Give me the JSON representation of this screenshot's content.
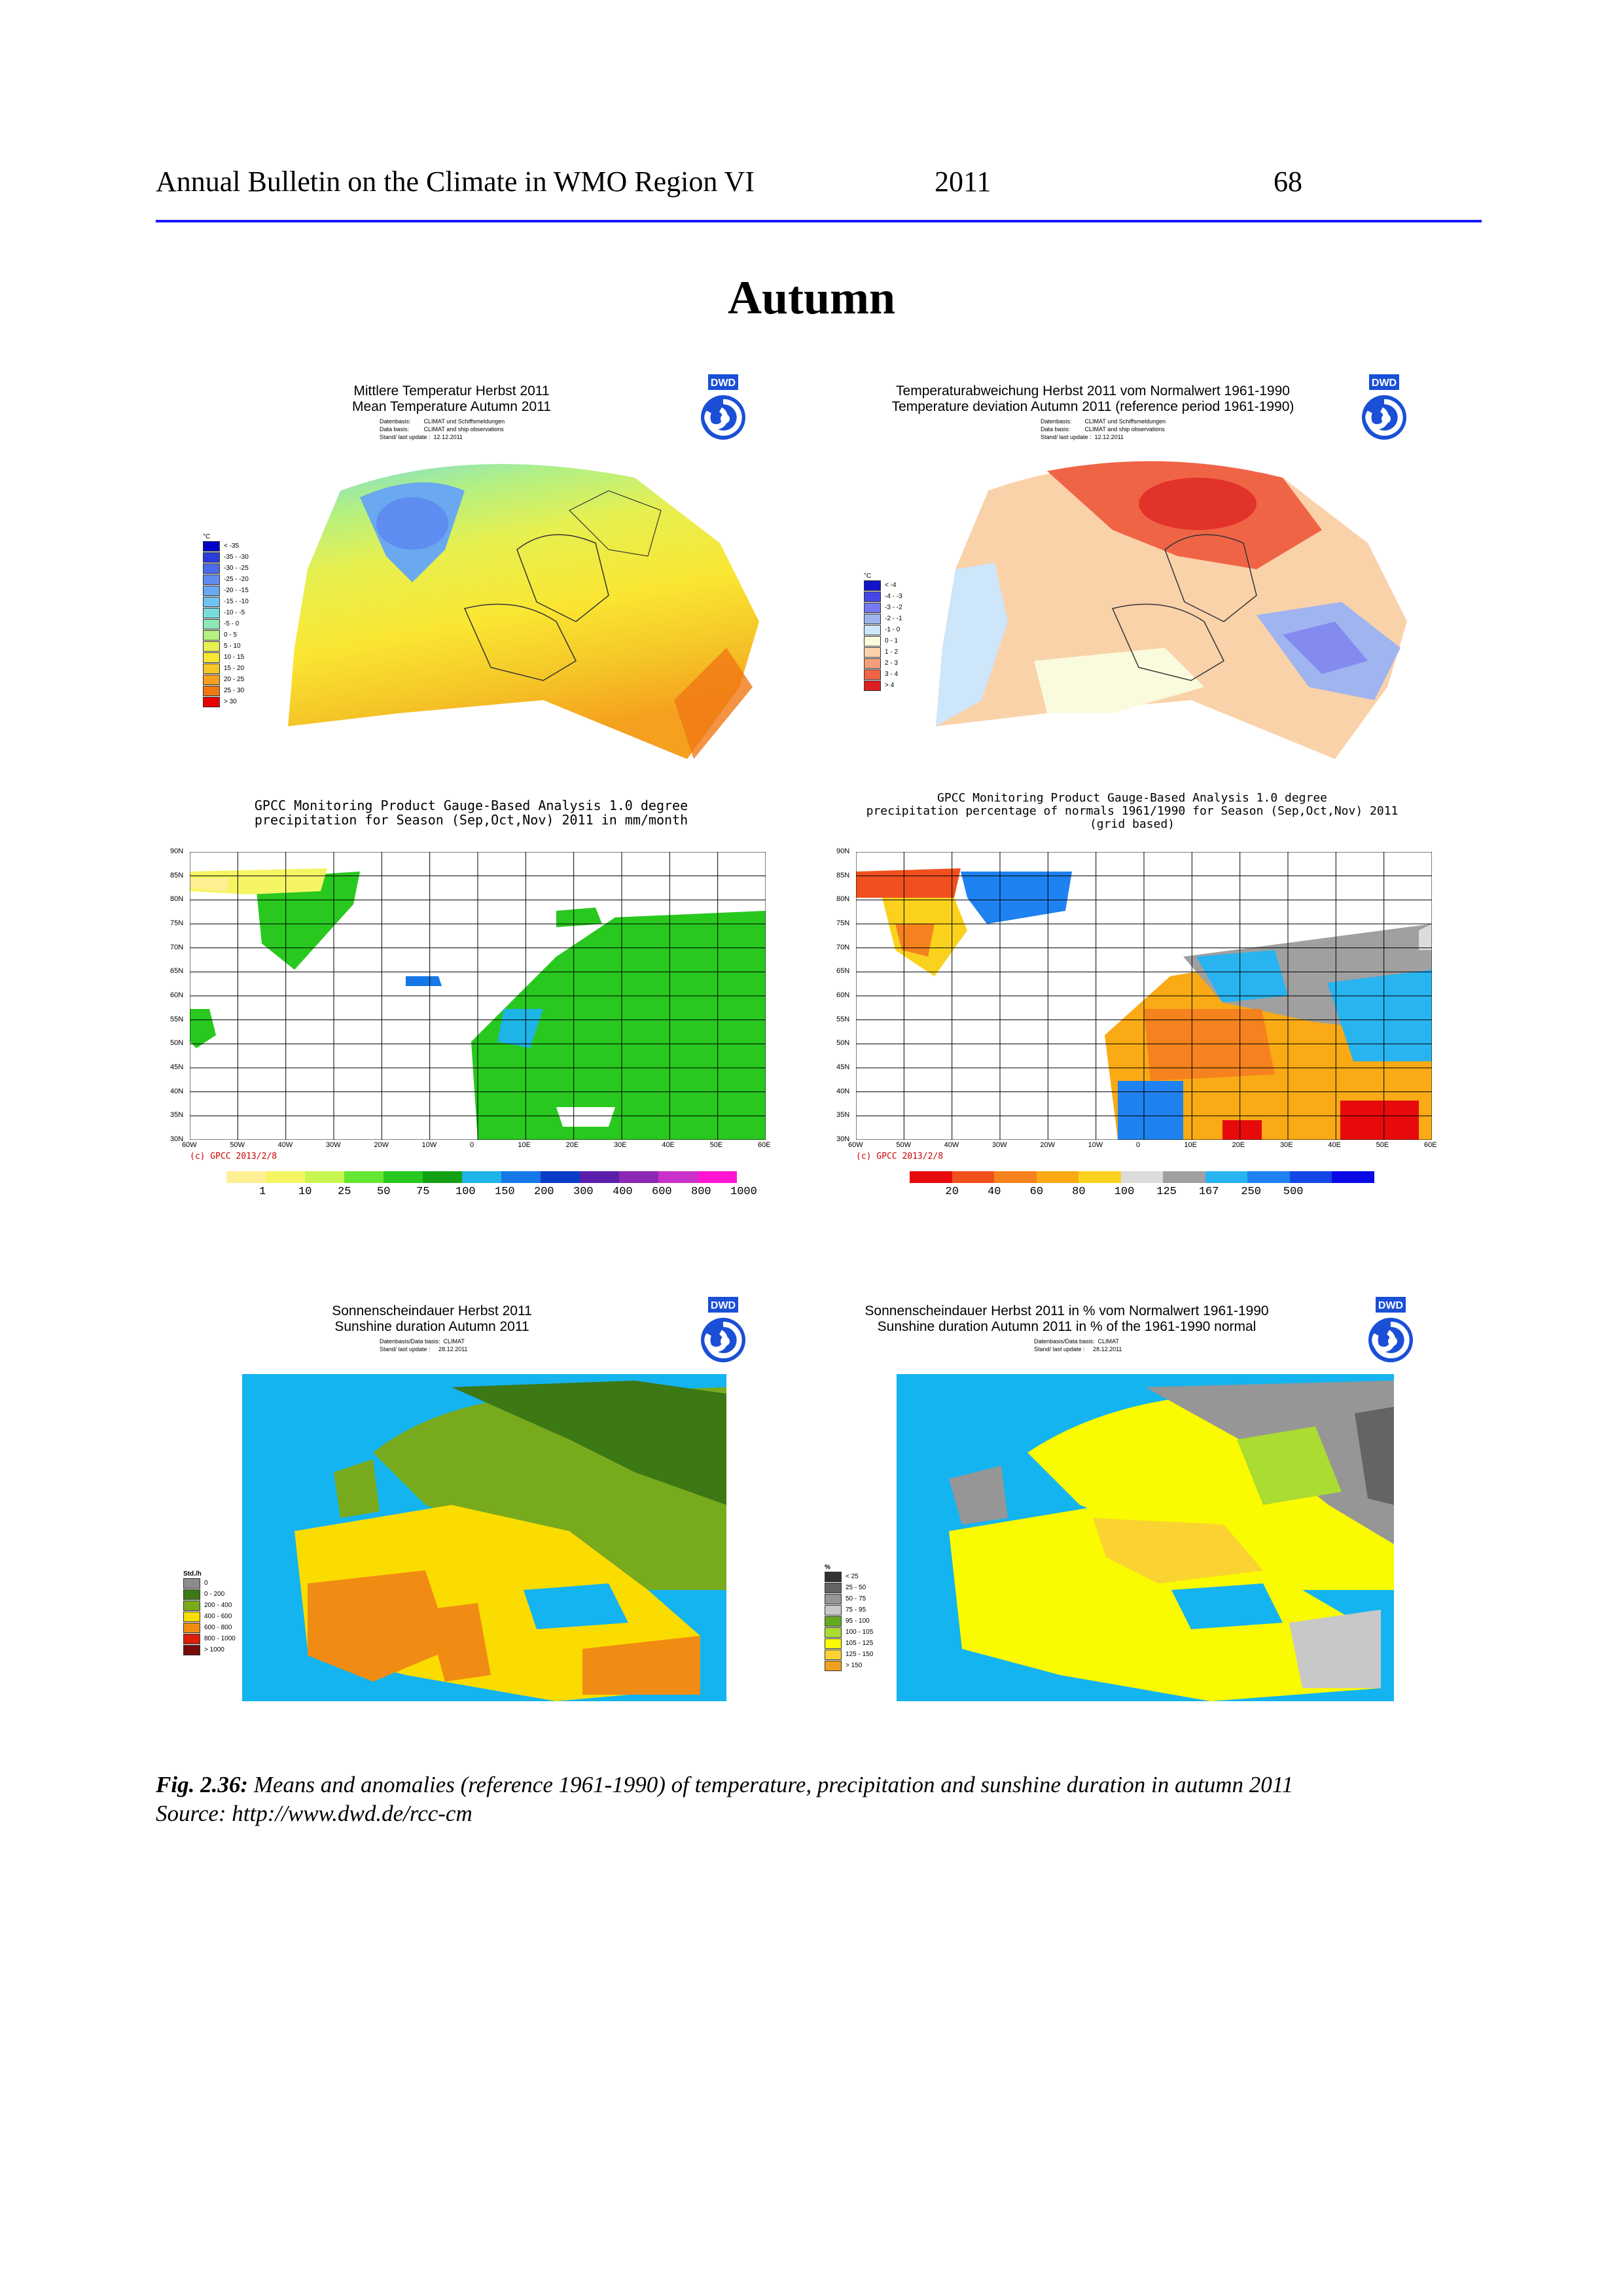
{
  "header": {
    "left": "Annual Bulletin on the Climate in WMO Region VI",
    "year": "2011",
    "page": "68"
  },
  "section_title": "Autumn",
  "panels": {
    "temp_mean": {
      "title1": "Mittlere Temperatur Herbst 2011",
      "title2": "Mean Temperature Autumn 2011",
      "meta": "Datenbasis:        CLIMAT und Schiffsmeldungen\nData basis:         CLIMAT and ship observations\nStand/ last update :  12.12.2011",
      "legend_unit": "°C",
      "legend": [
        "< -35",
        "-35 - -30",
        "-30 - -25",
        "-25 - -20",
        "-20 - -15",
        "-15 - -10",
        "-10 - -5",
        "-5 - 0",
        "0 - 5",
        "5 - 10",
        "10 - 15",
        "15 - 20",
        "20 - 25",
        "25 - 30",
        "> 30"
      ],
      "legend_colors": [
        "#0000c8",
        "#2a3cdc",
        "#4a6ae8",
        "#5f8cf0",
        "#6aa8f0",
        "#72c4f0",
        "#78dcdc",
        "#8ee6b4",
        "#b4f082",
        "#e6f050",
        "#fae632",
        "#f5c828",
        "#f5a01e",
        "#f07814",
        "#e60000"
      ]
    },
    "temp_anom": {
      "title1": "Temperaturabweichung Herbst 2011 vom Normalwert 1961-1990",
      "title2": "Temperature deviation Autumn 2011 (reference period 1961-1990)",
      "meta": "Datenbasis:        CLIMAT und Schiffsmeldungen\nData basis:         CLIMAT and ship observations\nStand/ last update :  12.12.2011",
      "legend_unit": "°C",
      "legend": [
        "< -4",
        "-4 - -3",
        "-3 - -2",
        "-2 - -1",
        "-1 - 0",
        "0 - 1",
        "1 - 2",
        "2 - 3",
        "3 - 4",
        "> 4"
      ],
      "legend_colors": [
        "#1414c8",
        "#4646e6",
        "#7878f0",
        "#a0b4f0",
        "#cde6fa",
        "#fafadc",
        "#fad2aa",
        "#f5a078",
        "#f06446",
        "#dc1e1e"
      ]
    },
    "precip_total": {
      "title1": "GPCC Monitoring Product Gauge-Based Analysis 1.0 degree",
      "title2": "precipitation for Season (Sep,Oct,Nov) 2011 in mm/month",
      "copyright": "(c) GPCC 2013/2/8",
      "lat_labels": [
        "90N",
        "85N",
        "80N",
        "75N",
        "70N",
        "65N",
        "60N",
        "55N",
        "50N",
        "45N",
        "40N",
        "35N",
        "30N"
      ],
      "lon_labels": [
        "60W",
        "50W",
        "40W",
        "30W",
        "20W",
        "10W",
        "0",
        "10E",
        "20E",
        "30E",
        "40E",
        "50E",
        "60E"
      ],
      "cbar_labels": [
        "1",
        "10",
        "25",
        "50",
        "75",
        "100",
        "150",
        "200",
        "300",
        "400",
        "600",
        "800",
        "1000"
      ],
      "cbar_colors": [
        "#fff096",
        "#f5f564",
        "#c8f550",
        "#64e632",
        "#28c81e",
        "#14a014",
        "#1eb4e6",
        "#1478e6",
        "#0a3cc8",
        "#5a1eaa",
        "#8c28b4",
        "#c832c8",
        "#ff14d2"
      ]
    },
    "precip_pct": {
      "title1": "GPCC Monitoring Product Gauge-Based Analysis 1.0 degree",
      "title2": "precipitation percentage of normals 1961/1990 for Season (Sep,Oct,Nov) 2011",
      "title3": "(grid based)",
      "copyright": "(c) GPCC 2013/2/8",
      "lat_labels": [
        "90N",
        "85N",
        "80N",
        "75N",
        "70N",
        "65N",
        "60N",
        "55N",
        "50N",
        "45N",
        "40N",
        "35N",
        "30N"
      ],
      "lon_labels": [
        "60W",
        "50W",
        "40W",
        "30W",
        "20W",
        "10W",
        "0",
        "10E",
        "20E",
        "30E",
        "40E",
        "50E",
        "60E"
      ],
      "cbar_labels": [
        "20",
        "40",
        "60",
        "80",
        "100",
        "125",
        "167",
        "250",
        "500"
      ],
      "cbar_colors": [
        "#e60a0a",
        "#f0501e",
        "#f5821e",
        "#faaa14",
        "#fad21e",
        "#dcdcdc",
        "#a0a0a0",
        "#28b4f0",
        "#1e82f0",
        "#1446e6",
        "#0a0ae6"
      ]
    },
    "sun_total": {
      "title1": "Sonnenscheindauer Herbst 2011",
      "title2": "Sunshine duration Autumn 2011",
      "meta": "Datenbasis/Data basis:  CLIMAT\nStand/ last update :     28.12.2011",
      "legend_unit": "Std./h",
      "legend": [
        "0",
        "0 - 200",
        "200 - 400",
        "400 - 600",
        "600 - 800",
        "800 - 1000",
        "> 1000"
      ],
      "legend_colors": [
        "#8c8c8c",
        "#3c7814",
        "#78aa1e",
        "#fadc00",
        "#f08c14",
        "#dc1e0a",
        "#780a0a"
      ]
    },
    "sun_pct": {
      "title1": "Sonnenscheindauer Herbst 2011 in % vom Normalwert 1961-1990",
      "title2": "Sunshine duration Autumn 2011 in % of the 1961-1990 normal",
      "meta": "Datenbasis/Data basis:  CLIMAT\nStand/ last update :     28.12.2011",
      "legend_unit": "%",
      "legend": [
        "< 25",
        "25 - 50",
        "50 - 75",
        "75 - 95",
        "95 - 100",
        "100 - 105",
        "105 - 125",
        "125 - 150",
        "> 150"
      ],
      "legend_colors": [
        "#323232",
        "#646464",
        "#969696",
        "#c8c8c8",
        "#64aa1e",
        "#aadc32",
        "#fafa00",
        "#fad232",
        "#f0a01e"
      ]
    }
  },
  "caption": {
    "fig": "Fig. 2.36:",
    "text": " Means and anomalies (reference 1961-1990) of temperature, precipitation and sunshine duration in autumn 2011",
    "source": "Source: http://www.dwd.de/rcc-cm"
  },
  "dwd_logo_text": "DWD"
}
